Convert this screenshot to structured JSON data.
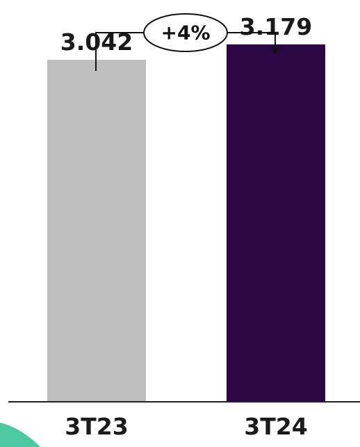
{
  "chart_data": {
    "type": "bar",
    "categories": [
      "3T23",
      "3T24"
    ],
    "values": [
      3042,
      3179
    ],
    "data_labels": [
      "3.042",
      "3.179"
    ],
    "colors": [
      "#bfbfbf",
      "#2b0644"
    ],
    "ylim": [
      0,
      3450
    ],
    "grid": false,
    "annotation": {
      "text": "+4%",
      "from": "3T23",
      "to": "3T24"
    }
  },
  "colors": {
    "axis": "#222222",
    "accent_decoration": "#4cc9a0"
  }
}
